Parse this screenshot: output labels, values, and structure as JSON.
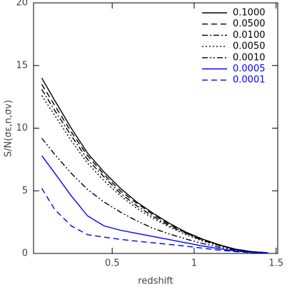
{
  "chart_data": {
    "type": "line",
    "x_label": "redshift",
    "y_label": "S/N(σε,n,σv)",
    "x": [
      0.07,
      0.15,
      0.25,
      0.35,
      0.45,
      0.55,
      0.65,
      0.75,
      0.85,
      0.95,
      1.05,
      1.15,
      1.25,
      1.35,
      1.45
    ],
    "series": [
      {
        "name": "0.1000",
        "color": "#000000",
        "dash": "none",
        "values": [
          14.0,
          12.2,
          10.0,
          8.0,
          6.5,
          5.2,
          4.1,
          3.2,
          2.4,
          1.7,
          1.15,
          0.7,
          0.35,
          0.15,
          0.05
        ]
      },
      {
        "name": "0.0500",
        "color": "#000000",
        "dash": "8,5",
        "values": [
          13.5,
          11.8,
          9.7,
          7.8,
          6.3,
          5.0,
          4.0,
          3.1,
          2.3,
          1.65,
          1.1,
          0.68,
          0.34,
          0.14,
          0.05
        ]
      },
      {
        "name": "0.0100",
        "color": "#000000",
        "dash": "8,3,2,3",
        "values": [
          13.1,
          11.4,
          9.4,
          7.5,
          6.1,
          4.8,
          3.8,
          2.95,
          2.2,
          1.6,
          1.05,
          0.65,
          0.32,
          0.13,
          0.05
        ]
      },
      {
        "name": "0.0050",
        "color": "#000000",
        "dash": "2,3",
        "values": [
          12.6,
          11.0,
          9.0,
          7.2,
          5.8,
          4.6,
          3.6,
          2.8,
          2.1,
          1.5,
          1.0,
          0.62,
          0.3,
          0.12,
          0.05
        ]
      },
      {
        "name": "0.0010",
        "color": "#000000",
        "dash": "8,3,2,3,2,3",
        "values": [
          9.2,
          7.9,
          6.4,
          5.1,
          4.1,
          3.3,
          2.6,
          2.0,
          1.55,
          1.15,
          0.8,
          0.5,
          0.27,
          0.1,
          0.04
        ]
      },
      {
        "name": "0.0005",
        "color": "#0000ff",
        "dash": "none",
        "values": [
          7.8,
          6.4,
          4.6,
          3.0,
          2.2,
          1.85,
          1.6,
          1.35,
          1.1,
          0.85,
          0.6,
          0.38,
          0.2,
          0.08,
          0.03
        ]
      },
      {
        "name": "0.0001",
        "color": "#0000ff",
        "dash": "8,5",
        "values": [
          5.2,
          3.5,
          2.2,
          1.5,
          1.3,
          1.12,
          0.98,
          0.85,
          0.72,
          0.58,
          0.42,
          0.27,
          0.15,
          0.06,
          0.02
        ]
      }
    ],
    "xlim": [
      0.02,
      1.51
    ],
    "ylim": [
      0,
      20
    ],
    "xticks": [
      0.5,
      1,
      1.5
    ],
    "yticks": [
      0,
      5,
      10,
      15,
      20
    ],
    "legend": "upper right"
  }
}
